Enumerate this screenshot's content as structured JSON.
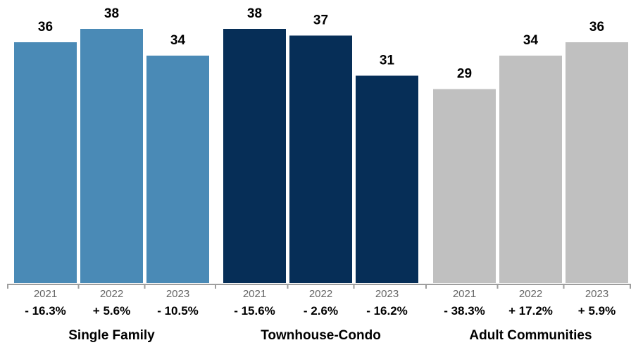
{
  "chart_data": {
    "type": "bar",
    "title": "",
    "xlabel": "",
    "ylabel": "",
    "ylim": [
      0,
      42
    ],
    "grid": false,
    "legend": "none",
    "groups": [
      {
        "name": "Single Family",
        "color": "#4a8ab6",
        "bars": [
          {
            "year": "2021",
            "value": 36,
            "change": "- 16.3%"
          },
          {
            "year": "2022",
            "value": 38,
            "change": "+ 5.6%"
          },
          {
            "year": "2023",
            "value": 34,
            "change": "- 10.5%"
          }
        ]
      },
      {
        "name": "Townhouse-Condo",
        "color": "#062e57",
        "bars": [
          {
            "year": "2021",
            "value": 38,
            "change": "- 15.6%"
          },
          {
            "year": "2022",
            "value": 37,
            "change": "- 2.6%"
          },
          {
            "year": "2023",
            "value": 31,
            "change": "- 16.2%"
          }
        ]
      },
      {
        "name": "Adult Communities",
        "color": "#c0c0c0",
        "bars": [
          {
            "year": "2021",
            "value": 29,
            "change": "- 38.3%"
          },
          {
            "year": "2022",
            "value": 34,
            "change": "+ 17.2%"
          },
          {
            "year": "2023",
            "value": 36,
            "change": "+ 5.9%"
          }
        ]
      }
    ]
  }
}
